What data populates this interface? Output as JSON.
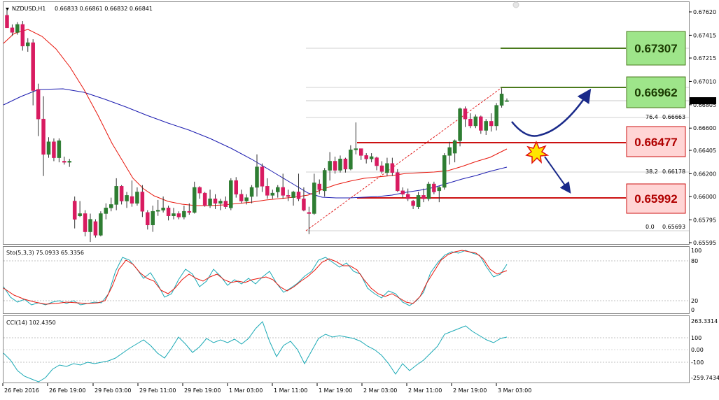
{
  "header": {
    "symbol": "NZDUSD,H1",
    "quotes": "0.66833 0.66861 0.66832 0.66841"
  },
  "price_ticks": [
    "0.67620",
    "0.67415",
    "0.67215",
    "0.67010",
    "0.66805",
    "0.66600",
    "0.66405",
    "0.66200",
    "0.66000",
    "0.65795",
    "0.65595"
  ],
  "current_price": "0.66841",
  "levels": [
    {
      "label": "0.67307",
      "price": 0.67307,
      "kind": "resistance"
    },
    {
      "label": "0.66962",
      "price": 0.66962,
      "kind": "resistance"
    },
    {
      "label": "0.66477",
      "price": 0.66477,
      "kind": "support"
    },
    {
      "label": "0.65992",
      "price": 0.65992,
      "kind": "support"
    }
  ],
  "fib": [
    {
      "level": "76.4",
      "value": "0.66663"
    },
    {
      "level": "38.2",
      "value": "0.66178"
    },
    {
      "level": "0.0",
      "value": "0.65693"
    }
  ],
  "stoch": {
    "label": "Sto(5,3,3) 75.0933 65.3356",
    "ticks": [
      "100",
      "80",
      "20",
      "0"
    ]
  },
  "cci": {
    "label": "CCI(14) 102.4350",
    "ticks": [
      "263.3314",
      "100",
      "0.00",
      "-100",
      "-259.7434"
    ]
  },
  "time_labels": [
    "26 Feb 2016",
    "26 Feb 19:00",
    "29 Feb 03:00",
    "29 Feb 11:00",
    "29 Feb 19:00",
    "1 Mar 03:00",
    "1 Mar 11:00",
    "1 Mar 19:00",
    "2 Mar 03:00",
    "2 Mar 11:00",
    "2 Mar 19:00",
    "3 Mar 03:00"
  ],
  "colors": {
    "bull": "#2e7d32",
    "bear": "#d81b60",
    "ma_fast": "#e8160c",
    "ma_slow": "#1c1cb0",
    "green_box": "#9ee58a",
    "red_box": "#ffd5d5",
    "resistance_line": "#4a7a1c",
    "support_line": "#cc1111"
  },
  "chart_data": {
    "type": "candlestick",
    "timeframe": "H1",
    "candles": [
      [
        0.6759,
        0.6765,
        0.6748,
        0.6748
      ],
      [
        0.6748,
        0.6751,
        0.6741,
        0.6744
      ],
      [
        0.6744,
        0.6753,
        0.6742,
        0.6751
      ],
      [
        0.6751,
        0.6754,
        0.6728,
        0.6732
      ],
      [
        0.6732,
        0.6739,
        0.6727,
        0.6735
      ],
      [
        0.6735,
        0.6738,
        0.668,
        0.6693
      ],
      [
        0.6694,
        0.6699,
        0.6653,
        0.6668
      ],
      [
        0.6668,
        0.6688,
        0.6618,
        0.6637
      ],
      [
        0.6637,
        0.6652,
        0.6634,
        0.6648
      ],
      [
        0.6648,
        0.6651,
        0.6631,
        0.6634
      ],
      [
        0.6634,
        0.6651,
        0.663,
        0.6649
      ],
      [
        0.6631,
        0.6635,
        0.6628,
        0.663
      ],
      [
        0.663,
        0.6633,
        0.6626,
        0.6631
      ],
      [
        0.6596,
        0.66,
        0.6572,
        0.658
      ],
      [
        0.6583,
        0.6596,
        0.6582,
        0.6585
      ],
      [
        0.6585,
        0.6588,
        0.6565,
        0.6569
      ],
      [
        0.6569,
        0.6585,
        0.656,
        0.658
      ],
      [
        0.6578,
        0.658,
        0.6564,
        0.6566
      ],
      [
        0.6566,
        0.6587,
        0.6565,
        0.6585
      ],
      [
        0.6585,
        0.6594,
        0.658,
        0.659
      ],
      [
        0.659,
        0.6599,
        0.6587,
        0.6593
      ],
      [
        0.6593,
        0.6616,
        0.6588,
        0.6609
      ],
      [
        0.6609,
        0.661,
        0.6593,
        0.6596
      ],
      [
        0.6596,
        0.6604,
        0.659,
        0.6601
      ],
      [
        0.66,
        0.6614,
        0.6591,
        0.6594
      ],
      [
        0.6594,
        0.6608,
        0.6592,
        0.6604
      ],
      [
        0.6604,
        0.661,
        0.6582,
        0.6587
      ],
      [
        0.6586,
        0.6588,
        0.6571,
        0.6575
      ],
      [
        0.6575,
        0.6592,
        0.6569,
        0.6587
      ],
      [
        0.6587,
        0.6597,
        0.6583,
        0.6588
      ],
      [
        0.6588,
        0.66,
        0.6586,
        0.659
      ],
      [
        0.659,
        0.6592,
        0.6579,
        0.6583
      ],
      [
        0.6583,
        0.659,
        0.658,
        0.6585
      ],
      [
        0.6585,
        0.6587,
        0.658,
        0.6582
      ],
      [
        0.6582,
        0.6592,
        0.658,
        0.6587
      ],
      [
        0.6587,
        0.6594,
        0.6584,
        0.6586
      ],
      [
        0.6586,
        0.6613,
        0.6585,
        0.6608
      ],
      [
        0.6608,
        0.6609,
        0.6598,
        0.6603
      ],
      [
        0.6603,
        0.6604,
        0.6591,
        0.6592
      ],
      [
        0.6592,
        0.6606,
        0.659,
        0.6598
      ],
      [
        0.6598,
        0.6602,
        0.6589,
        0.6594
      ],
      [
        0.6594,
        0.6598,
        0.6588,
        0.6596
      ],
      [
        0.6596,
        0.66,
        0.6589,
        0.6591
      ],
      [
        0.659,
        0.6616,
        0.6588,
        0.6614
      ],
      [
        0.6614,
        0.6617,
        0.6599,
        0.6602
      ],
      [
        0.6602,
        0.6606,
        0.6594,
        0.6596
      ],
      [
        0.6596,
        0.6602,
        0.6593,
        0.6599
      ],
      [
        0.66,
        0.661,
        0.6594,
        0.6608
      ],
      [
        0.6608,
        0.6637,
        0.66,
        0.6626
      ],
      [
        0.6626,
        0.6629,
        0.6604,
        0.6609
      ],
      [
        0.6609,
        0.6616,
        0.6598,
        0.6601
      ],
      [
        0.6601,
        0.6606,
        0.6598,
        0.6603
      ],
      [
        0.6604,
        0.661,
        0.6599,
        0.6608
      ],
      [
        0.6608,
        0.662,
        0.6598,
        0.6601
      ],
      [
        0.6601,
        0.6606,
        0.6596,
        0.66
      ],
      [
        0.6599,
        0.6605,
        0.6592,
        0.6604
      ],
      [
        0.6604,
        0.662,
        0.6596,
        0.6598
      ],
      [
        0.6598,
        0.6608,
        0.6587,
        0.6588
      ],
      [
        0.6586,
        0.6591,
        0.6567,
        0.6585
      ],
      [
        0.6585,
        0.662,
        0.6584,
        0.6612
      ],
      [
        0.6611,
        0.6615,
        0.6602,
        0.6606
      ],
      [
        0.6605,
        0.6625,
        0.66,
        0.6623
      ],
      [
        0.6623,
        0.6639,
        0.6614,
        0.6631
      ],
      [
        0.6631,
        0.6635,
        0.662,
        0.6623
      ],
      [
        0.6623,
        0.6636,
        0.6621,
        0.6633
      ],
      [
        0.6633,
        0.6634,
        0.6621,
        0.6624
      ],
      [
        0.6624,
        0.6645,
        0.6623,
        0.6641
      ],
      [
        0.6641,
        0.6665,
        0.6637,
        0.6642
      ],
      [
        0.6642,
        0.6642,
        0.6632,
        0.6636
      ],
      [
        0.6636,
        0.6638,
        0.6629,
        0.6633
      ],
      [
        0.6633,
        0.6638,
        0.663,
        0.6635
      ],
      [
        0.6634,
        0.6635,
        0.6623,
        0.6627
      ],
      [
        0.6627,
        0.6631,
        0.662,
        0.6622
      ],
      [
        0.6621,
        0.6634,
        0.6618,
        0.6629
      ],
      [
        0.6629,
        0.6634,
        0.6618,
        0.6621
      ],
      [
        0.6621,
        0.6624,
        0.6604,
        0.6605
      ],
      [
        0.6605,
        0.6608,
        0.6599,
        0.6602
      ],
      [
        0.6602,
        0.6607,
        0.6596,
        0.6598
      ],
      [
        0.6596,
        0.6597,
        0.6589,
        0.6592
      ],
      [
        0.6591,
        0.6604,
        0.6589,
        0.6601
      ],
      [
        0.6601,
        0.6607,
        0.6595,
        0.6598
      ],
      [
        0.6598,
        0.6613,
        0.6596,
        0.6611
      ],
      [
        0.6611,
        0.6613,
        0.6602,
        0.6604
      ],
      [
        0.6605,
        0.6609,
        0.6595,
        0.6608
      ],
      [
        0.6608,
        0.6638,
        0.6606,
        0.6636
      ],
      [
        0.6636,
        0.6648,
        0.6628,
        0.6643
      ],
      [
        0.6638,
        0.665,
        0.663,
        0.6649
      ],
      [
        0.6649,
        0.6678,
        0.6644,
        0.6677
      ],
      [
        0.6677,
        0.6679,
        0.6661,
        0.6668
      ],
      [
        0.6668,
        0.6673,
        0.666,
        0.6662
      ],
      [
        0.6662,
        0.6672,
        0.666,
        0.667
      ],
      [
        0.667,
        0.6671,
        0.6655,
        0.6658
      ],
      [
        0.6658,
        0.6668,
        0.6654,
        0.6666
      ],
      [
        0.6666,
        0.6673,
        0.6657,
        0.6662
      ],
      [
        0.6662,
        0.6682,
        0.6658,
        0.668
      ],
      [
        0.668,
        0.6695,
        0.6678,
        0.669
      ],
      [
        0.66833,
        0.66861,
        0.66832,
        0.66841
      ]
    ]
  }
}
